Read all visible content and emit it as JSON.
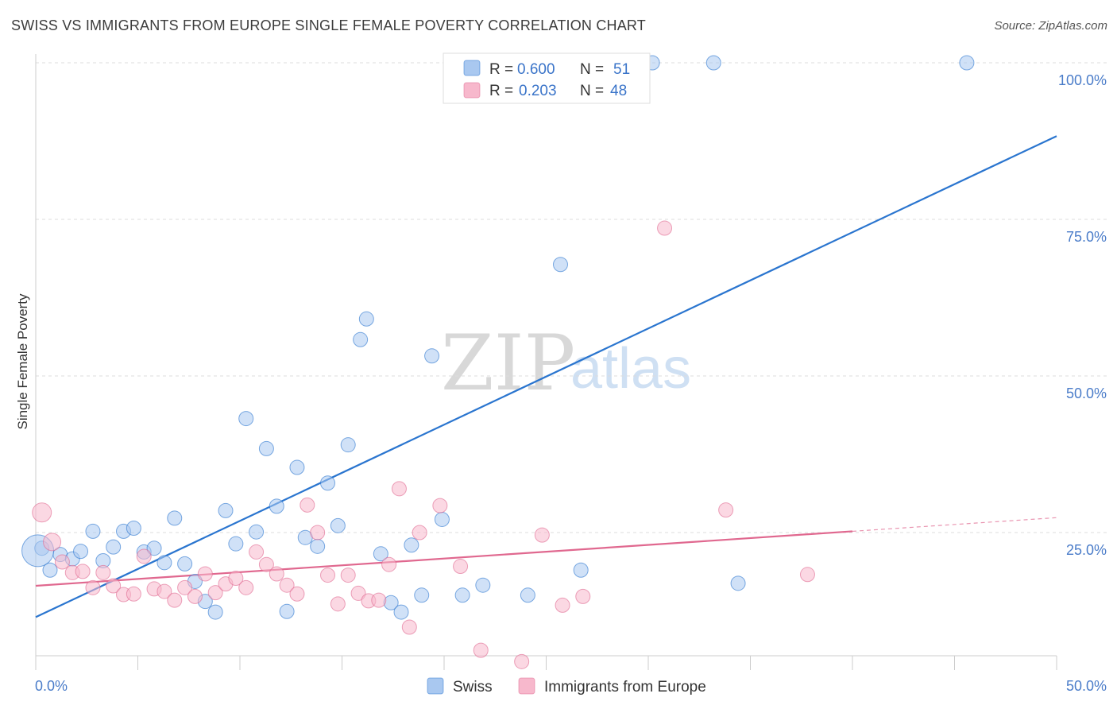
{
  "header": {
    "title": "SWISS VS IMMIGRANTS FROM EUROPE SINGLE FEMALE POVERTY CORRELATION CHART",
    "source": "Source: ZipAtlas.com"
  },
  "watermark": {
    "zip": "ZIP",
    "atlas": "atlas"
  },
  "legend": {
    "r_label": "R =",
    "n_label": "N =",
    "rows": [
      {
        "r": "0.600",
        "n": "51"
      },
      {
        "r": "0.203",
        "n": "48"
      }
    ]
  },
  "colors": {
    "swiss_fill": "#a9c8f0",
    "swiss_line": "#2a75cf",
    "europe_fill": "#f7b8cc",
    "europe_line": "#e0688f",
    "tick_text": "#4a7cc9",
    "grid": "#dcdcdc"
  },
  "chart_data": {
    "type": "scatter",
    "title": "SWISS VS IMMIGRANTS FROM EUROPE SINGLE FEMALE POVERTY CORRELATION CHART",
    "xlabel": "",
    "ylabel": "Single Female Poverty",
    "xlim": [
      0,
      50
    ],
    "ylim": [
      0,
      105
    ],
    "x_tick_labels": [
      "0.0%",
      "50.0%"
    ],
    "y_ticks": [
      25,
      50,
      75,
      100
    ],
    "y_tick_labels": [
      "25.0%",
      "50.0%",
      "75.0%",
      "100.0%"
    ],
    "grid": true,
    "legend_position": "top-center",
    "series": [
      {
        "name": "Swiss",
        "r": 0.6,
        "n": 51,
        "trend": {
          "x0": 0,
          "y0": 11.5,
          "x1": 50,
          "y1": 88.3
        },
        "points": [
          [
            0.3,
            22.5
          ],
          [
            0.7,
            19.0
          ],
          [
            1.2,
            21.5
          ],
          [
            1.8,
            20.8
          ],
          [
            2.2,
            22.0
          ],
          [
            2.8,
            25.2
          ],
          [
            3.3,
            20.5
          ],
          [
            3.8,
            22.7
          ],
          [
            4.3,
            25.2
          ],
          [
            4.8,
            25.7
          ],
          [
            5.3,
            21.9
          ],
          [
            5.8,
            22.5
          ],
          [
            6.3,
            20.2
          ],
          [
            6.8,
            27.3
          ],
          [
            7.3,
            20.0
          ],
          [
            7.8,
            17.2
          ],
          [
            8.3,
            14.0
          ],
          [
            8.8,
            12.3
          ],
          [
            9.3,
            28.5
          ],
          [
            9.8,
            23.2
          ],
          [
            10.3,
            43.2
          ],
          [
            10.8,
            25.1
          ],
          [
            11.3,
            38.4
          ],
          [
            11.8,
            29.2
          ],
          [
            12.3,
            12.4
          ],
          [
            12.8,
            35.4
          ],
          [
            13.2,
            24.2
          ],
          [
            13.8,
            22.8
          ],
          [
            14.3,
            32.9
          ],
          [
            14.8,
            26.1
          ],
          [
            15.3,
            39.0
          ],
          [
            15.9,
            55.8
          ],
          [
            16.2,
            59.1
          ],
          [
            16.9,
            21.6
          ],
          [
            17.4,
            13.8
          ],
          [
            17.9,
            12.3
          ],
          [
            18.4,
            23.0
          ],
          [
            18.9,
            15.0
          ],
          [
            19.4,
            53.2
          ],
          [
            19.9,
            27.1
          ],
          [
            20.9,
            15.0
          ],
          [
            21.9,
            16.6
          ],
          [
            23.1,
            100.0
          ],
          [
            24.1,
            15.0
          ],
          [
            25.7,
            67.8
          ],
          [
            26.7,
            19.0
          ],
          [
            30.2,
            100.0
          ],
          [
            33.2,
            100.0
          ],
          [
            34.4,
            16.9
          ],
          [
            45.6,
            100.0
          ],
          [
            0.1,
            22.1
          ]
        ]
      },
      {
        "name": "Immigrants from Europe",
        "r": 0.203,
        "n": 48,
        "trend": {
          "x0": 0,
          "y0": 16.5,
          "x1": 40,
          "y1": 25.2
        },
        "points": [
          [
            0.3,
            28.2
          ],
          [
            0.8,
            23.5
          ],
          [
            1.3,
            20.3
          ],
          [
            1.8,
            18.6
          ],
          [
            2.3,
            18.8
          ],
          [
            2.8,
            16.2
          ],
          [
            3.3,
            18.6
          ],
          [
            3.8,
            16.5
          ],
          [
            4.3,
            15.1
          ],
          [
            4.8,
            15.2
          ],
          [
            5.3,
            21.2
          ],
          [
            5.8,
            16.0
          ],
          [
            6.3,
            15.6
          ],
          [
            6.8,
            14.2
          ],
          [
            7.3,
            16.2
          ],
          [
            7.8,
            14.8
          ],
          [
            8.3,
            18.4
          ],
          [
            8.8,
            15.4
          ],
          [
            9.3,
            16.8
          ],
          [
            9.8,
            17.7
          ],
          [
            10.3,
            16.2
          ],
          [
            10.8,
            21.9
          ],
          [
            11.3,
            19.9
          ],
          [
            11.8,
            18.4
          ],
          [
            12.3,
            16.6
          ],
          [
            12.8,
            15.2
          ],
          [
            13.3,
            29.4
          ],
          [
            13.8,
            25.0
          ],
          [
            14.3,
            18.2
          ],
          [
            14.8,
            13.6
          ],
          [
            15.3,
            18.2
          ],
          [
            15.8,
            15.3
          ],
          [
            16.3,
            14.1
          ],
          [
            16.8,
            14.2
          ],
          [
            17.3,
            19.9
          ],
          [
            17.8,
            32.0
          ],
          [
            18.3,
            9.9
          ],
          [
            18.8,
            25.0
          ],
          [
            19.8,
            29.3
          ],
          [
            20.8,
            19.6
          ],
          [
            21.8,
            6.2
          ],
          [
            23.8,
            4.4
          ],
          [
            24.8,
            24.6
          ],
          [
            25.8,
            13.4
          ],
          [
            26.8,
            14.8
          ],
          [
            30.8,
            73.6
          ],
          [
            33.8,
            28.6
          ],
          [
            37.8,
            18.3
          ]
        ]
      }
    ]
  }
}
